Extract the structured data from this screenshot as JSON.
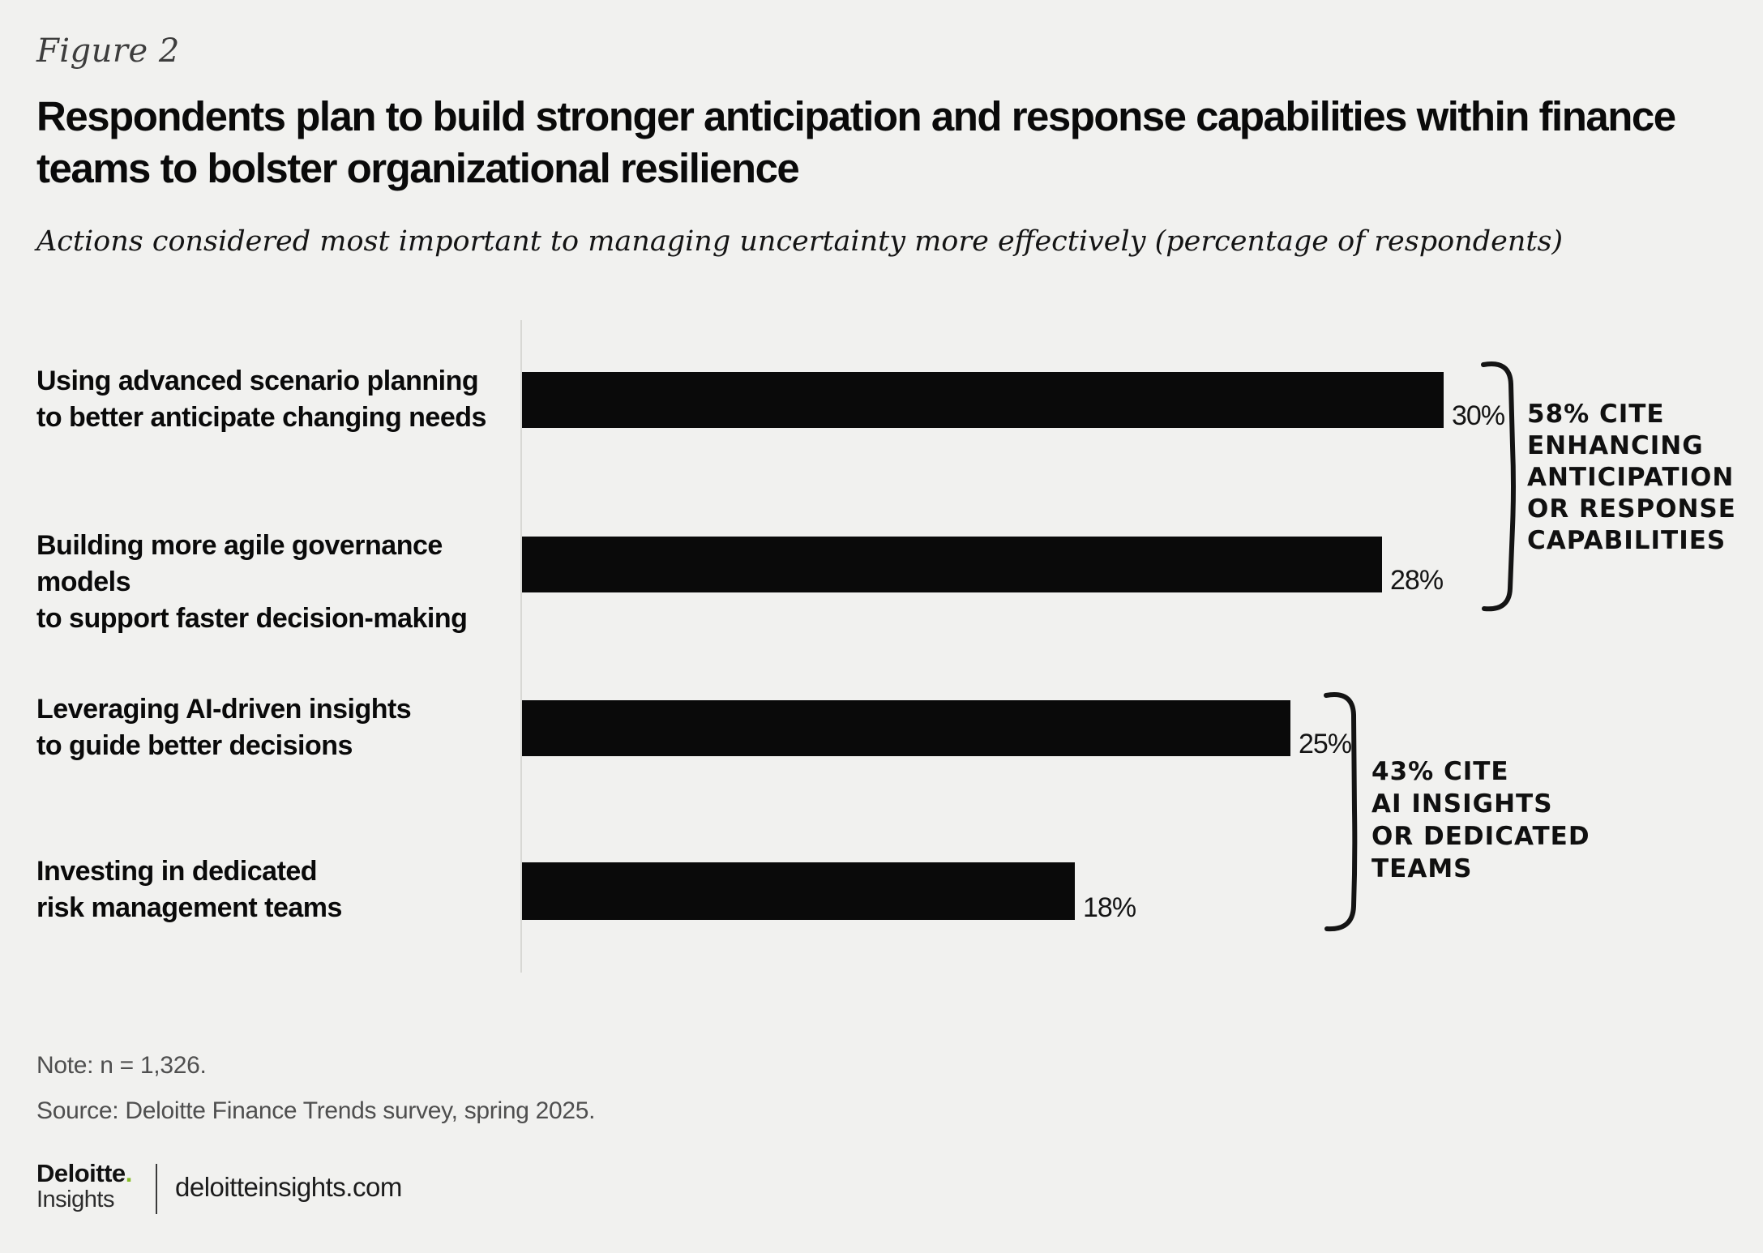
{
  "figure_label": "Figure 2",
  "title": "Respondents plan to build stronger anticipation and response capabilities within finance teams to bolster organizational resilience",
  "title_lines": [
    "Respondents plan to build stronger anticipation and response capabilities within finance",
    "teams to bolster organizational resilience"
  ],
  "subtitle": "Actions considered most important to managing uncertainty more effectively (percentage of respondents)",
  "chart_data": {
    "type": "bar",
    "orientation": "horizontal",
    "categories": [
      "Using advanced scenario planning to better anticipate changing needs",
      "Building more agile governance models to support faster decision-making",
      "Leveraging AI-driven insights to guide better decisions",
      "Investing in dedicated risk management teams"
    ],
    "categories_lines": [
      [
        "Using advanced scenario planning",
        "to better anticipate changing needs"
      ],
      [
        "Building more agile governance models",
        "to support faster decision-making"
      ],
      [
        "Leveraging AI-driven insights",
        "to guide better decisions"
      ],
      [
        "Investing in dedicated",
        "risk management teams"
      ]
    ],
    "values": [
      30,
      28,
      25,
      18
    ],
    "value_labels": [
      "30%",
      "28%",
      "25%",
      "18%"
    ],
    "unit": "percentage of respondents",
    "xlim": [
      0,
      30
    ],
    "grid": false,
    "legend": false,
    "annotations": [
      {
        "text": "58% cite enhancing anticipation or response capabilities",
        "lines": [
          "58% CITE",
          "ENHANCING",
          "ANTICIPATION",
          "OR RESPONSE",
          "CAPABILITIES"
        ],
        "applies_to": [
          "Using advanced scenario planning to better anticipate changing needs",
          "Building more agile governance models to support faster decision-making"
        ]
      },
      {
        "text": "43% cite AI insights or dedicated teams",
        "lines": [
          "43% CITE",
          "AI INSIGHTS",
          "OR DEDICATED",
          "TEAMS"
        ],
        "applies_to": [
          "Leveraging AI-driven insights to guide better decisions",
          "Investing in dedicated risk management teams"
        ]
      }
    ]
  },
  "note": "Note: n = 1,326.",
  "source": "Source: Deloitte Finance Trends survey, spring 2025.",
  "footer": {
    "brand_name": "Deloitte",
    "brand_dot": ".",
    "brand_sub": "Insights",
    "site": "deloitteinsights.com"
  },
  "colors": {
    "background": "#f1f1ef",
    "bar": "#0a0a0a",
    "title_text": "#0a0a0a",
    "muted_text": "#4f4f4f",
    "axis_line": "#d8d8d4",
    "brand_green": "#86bc25",
    "annotation_ink": "#101010"
  }
}
